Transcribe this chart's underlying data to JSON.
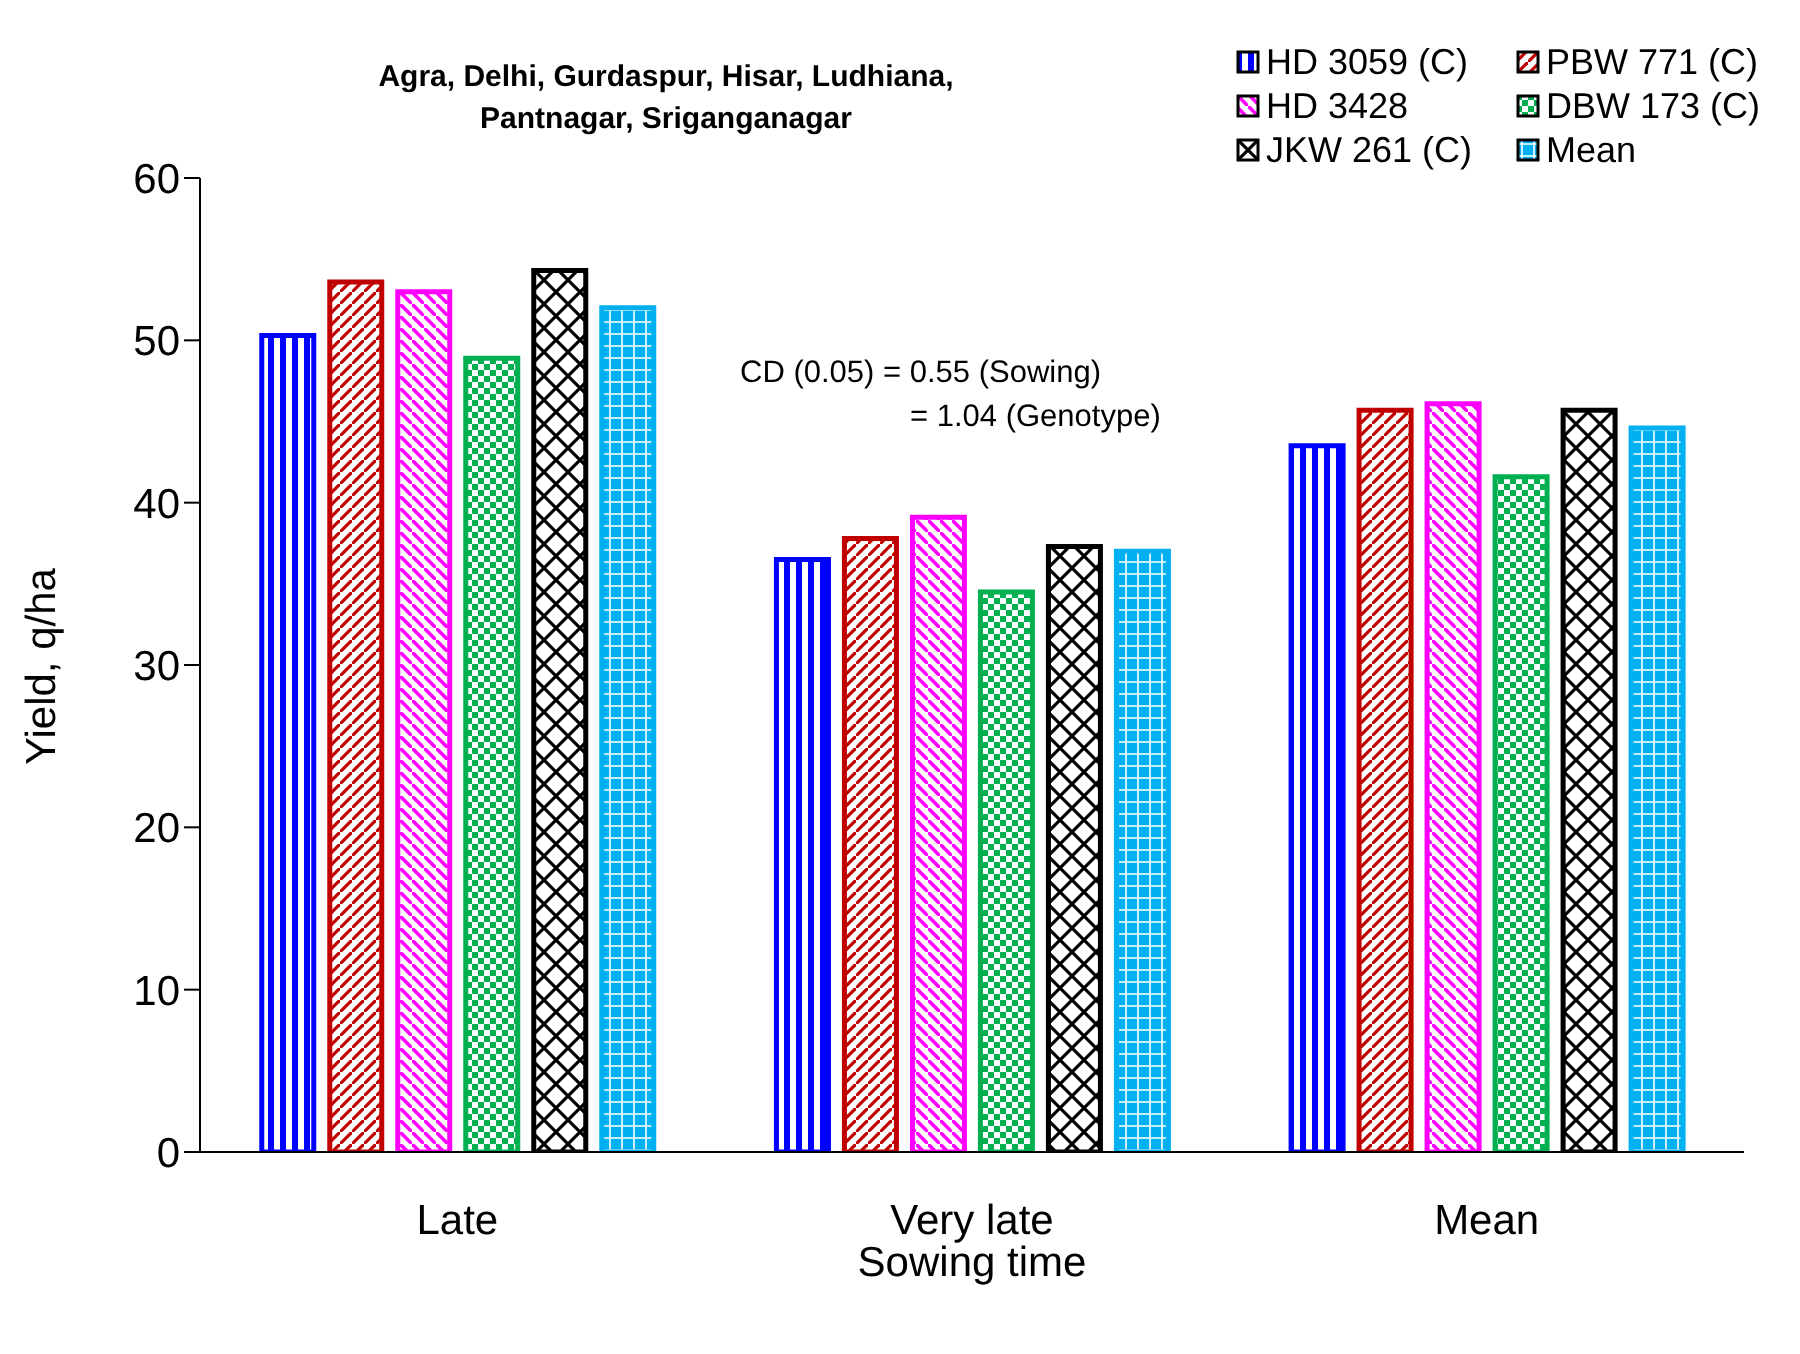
{
  "chart_data": {
    "type": "bar",
    "title": "Agra, Delhi, Gurdaspur, Hisar, Ludhiana, Pantnagar, Sriganganagar",
    "xlabel": "Sowing time",
    "ylabel": "Yield, q/ha",
    "categories": [
      "Late",
      "Very late",
      "Mean"
    ],
    "series": [
      {
        "name": "HD 3059 (C)",
        "color": "#0000ff",
        "values": [
          50.3,
          36.5,
          43.5
        ]
      },
      {
        "name": "PBW 771 (C)",
        "color": "#c00000",
        "values": [
          53.6,
          37.8,
          45.7
        ]
      },
      {
        "name": "HD 3428",
        "color": "#ff00ff",
        "values": [
          53.0,
          39.1,
          46.1
        ]
      },
      {
        "name": "DBW 173 (C)",
        "color": "#00b050",
        "values": [
          48.9,
          34.5,
          41.6
        ]
      },
      {
        "name": "JKW 261 (C)",
        "color": "#000000",
        "values": [
          54.3,
          37.3,
          45.7
        ]
      },
      {
        "name": "Mean",
        "color": "#00b0f0",
        "values": [
          52.0,
          37.0,
          44.6
        ]
      }
    ],
    "ylim": [
      0,
      60
    ],
    "yticks": [
      0,
      10,
      20,
      30,
      40,
      50,
      60
    ],
    "grid": false,
    "legend": "top right",
    "annotations": [
      "CD (0.05) = 0.55 (Sowing)",
      "= 1.04 (Genotype)"
    ]
  }
}
